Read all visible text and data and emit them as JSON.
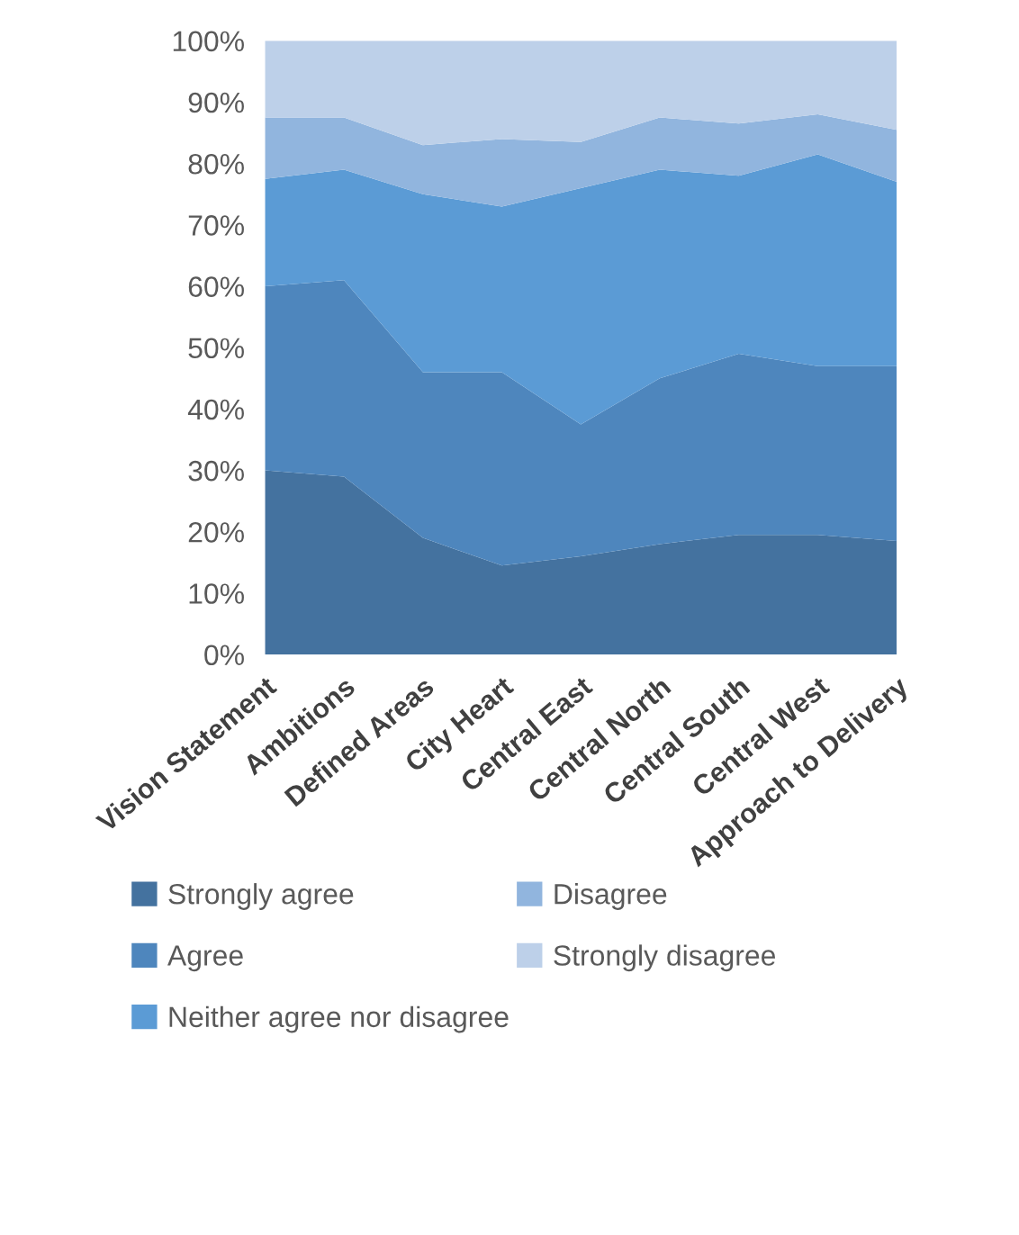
{
  "chart_data": {
    "type": "area",
    "stacked": true,
    "categories": [
      "Vision Statement",
      "Ambitions",
      "Defined Areas",
      "City Heart",
      "Central East",
      "Central North",
      "Central South",
      "Central West",
      "Approach to Delivery"
    ],
    "series": [
      {
        "name": "Strongly agree",
        "color": "#44729f",
        "values": [
          30,
          29,
          19,
          14.5,
          16,
          18,
          19.5,
          19.5,
          18.5
        ]
      },
      {
        "name": "Agree",
        "color": "#4e86bd",
        "values": [
          30,
          32,
          27,
          31.5,
          21.5,
          27,
          29.5,
          27.5,
          28.5
        ]
      },
      {
        "name": "Neither agree nor disagree",
        "color": "#5b9bd5",
        "values": [
          17.5,
          18,
          29,
          27,
          38.5,
          34,
          29,
          34.5,
          30
        ]
      },
      {
        "name": "Disagree",
        "color": "#91b5de",
        "values": [
          10,
          8.5,
          8,
          11,
          7.5,
          8.5,
          8.5,
          6.5,
          8.5
        ]
      },
      {
        "name": "Strongly disagree",
        "color": "#bdd0e9",
        "values": [
          12.5,
          12.5,
          17,
          16,
          16.5,
          12.5,
          13.5,
          12,
          14.5
        ]
      }
    ],
    "ylim": [
      0,
      100
    ],
    "yticks": [
      {
        "value": 0,
        "label": "0%"
      },
      {
        "value": 10,
        "label": "10%"
      },
      {
        "value": 20,
        "label": "20%"
      },
      {
        "value": 30,
        "label": "30%"
      },
      {
        "value": 40,
        "label": "40%"
      },
      {
        "value": 50,
        "label": "50%"
      },
      {
        "value": 60,
        "label": "60%"
      },
      {
        "value": 70,
        "label": "70%"
      },
      {
        "value": 80,
        "label": "80%"
      },
      {
        "value": 90,
        "label": "90%"
      },
      {
        "value": 100,
        "label": "100%"
      }
    ],
    "grid": false,
    "legend": "bottom"
  }
}
